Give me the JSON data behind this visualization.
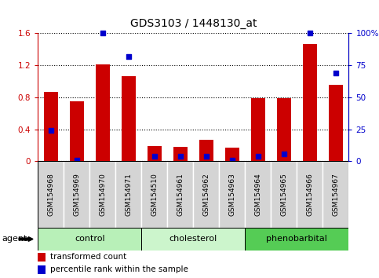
{
  "title": "GDS3103 / 1448130_at",
  "samples": [
    "GSM154968",
    "GSM154969",
    "GSM154970",
    "GSM154971",
    "GSM154510",
    "GSM154961",
    "GSM154962",
    "GSM154963",
    "GSM154964",
    "GSM154965",
    "GSM154966",
    "GSM154967"
  ],
  "red_values": [
    0.87,
    0.75,
    1.21,
    1.06,
    0.19,
    0.18,
    0.27,
    0.17,
    0.79,
    0.79,
    1.47,
    0.96
  ],
  "blue_pct": [
    24,
    1,
    100,
    82,
    4,
    4,
    4,
    1,
    4,
    6,
    100,
    69
  ],
  "groups": [
    {
      "label": "control",
      "start": 0,
      "end": 3,
      "color": "#b8f0b8"
    },
    {
      "label": "cholesterol",
      "start": 4,
      "end": 7,
      "color": "#ccf5cc"
    },
    {
      "label": "phenobarbital",
      "start": 8,
      "end": 11,
      "color": "#55cc55"
    }
  ],
  "ylim_left": [
    0,
    1.6
  ],
  "ylim_right": [
    0,
    100
  ],
  "yticks_left": [
    0,
    0.4,
    0.8,
    1.2,
    1.6
  ],
  "ytick_labels_left": [
    "0",
    "0.4",
    "0.8",
    "1.2",
    "1.6"
  ],
  "yticks_right": [
    0,
    25,
    50,
    75,
    100
  ],
  "ytick_labels_right": [
    "0",
    "25",
    "50",
    "75",
    "100%"
  ],
  "red_color": "#cc0000",
  "blue_color": "#0000cc",
  "plot_bg_color": "#ffffff",
  "tick_box_color": "#d4d4d4",
  "agent_label": "agent",
  "legend_labels": [
    "transformed count",
    "percentile rank within the sample"
  ]
}
